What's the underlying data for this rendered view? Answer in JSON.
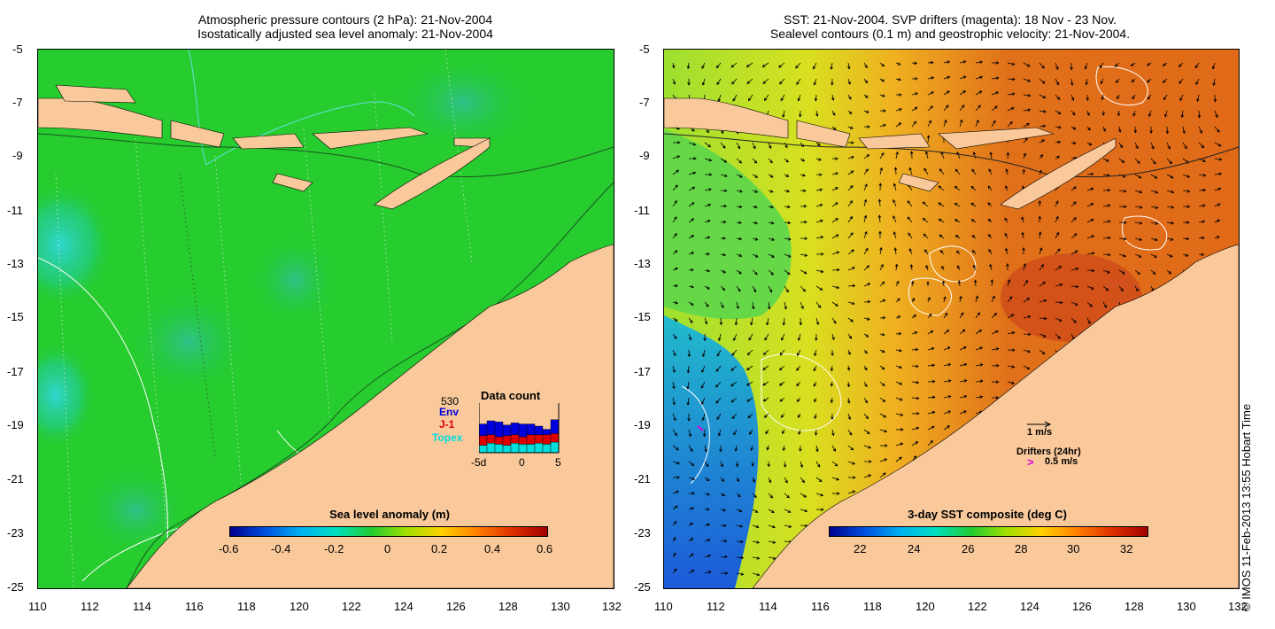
{
  "left_panel": {
    "title_line1": "Atmospheric pressure contours (2 hPa): 21-Nov-2004",
    "title_line2": "Isostatically adjusted sea level anomaly: 21-Nov-2004",
    "y_ticks": [
      "-5",
      "-7",
      "-9",
      "-11",
      "-13",
      "-15",
      "-17",
      "-19",
      "-21",
      "-23",
      "-25"
    ],
    "x_ticks": [
      "110",
      "112",
      "114",
      "116",
      "118",
      "120",
      "122",
      "124",
      "126",
      "128",
      "130",
      "132"
    ],
    "colorbar": {
      "title": "Sea level anomaly (m)",
      "labels": [
        "-0.6",
        "-0.4",
        "-0.2",
        "0",
        "0.2",
        "0.4",
        "0.6"
      ]
    },
    "data_count": {
      "total": "530",
      "title": "Data count",
      "missions": [
        "Env",
        "J-1",
        "Topex"
      ],
      "mission_colors": [
        "#0000dd",
        "#dd0000",
        "#00dddd"
      ],
      "x_labels": [
        "-5d",
        "0",
        "5"
      ]
    }
  },
  "right_panel": {
    "title_line1": "SST: 21-Nov-2004. SVP drifters (magenta): 18 Nov - 23 Nov.",
    "title_line2": "Sealevel contours (0.1 m) and geostrophic velocity: 21-Nov-2004.",
    "y_ticks": [
      "-5",
      "-7",
      "-9",
      "-11",
      "-13",
      "-15",
      "-17",
      "-19",
      "-21",
      "-23",
      "-25"
    ],
    "x_ticks": [
      "110",
      "112",
      "114",
      "116",
      "118",
      "120",
      "122",
      "124",
      "126",
      "128",
      "130",
      "132"
    ],
    "colorbar": {
      "title": "3-day SST composite (deg C)",
      "labels": [
        "22",
        "24",
        "26",
        "28",
        "30",
        "32"
      ]
    },
    "velocity_key": "1 m/s",
    "drifters_label": "Drifters (24hr)",
    "drifter_speed": "0.5 m/s",
    "drifter_symbol": ">"
  },
  "copyright": "© IMOS 11-Feb-2013 13:55 Hobart Time",
  "colors": {
    "land": "#f9c99b",
    "sea_green": "#22cc33",
    "sst_orange": "#e0781a",
    "sst_blue": "#2a8ee0"
  }
}
